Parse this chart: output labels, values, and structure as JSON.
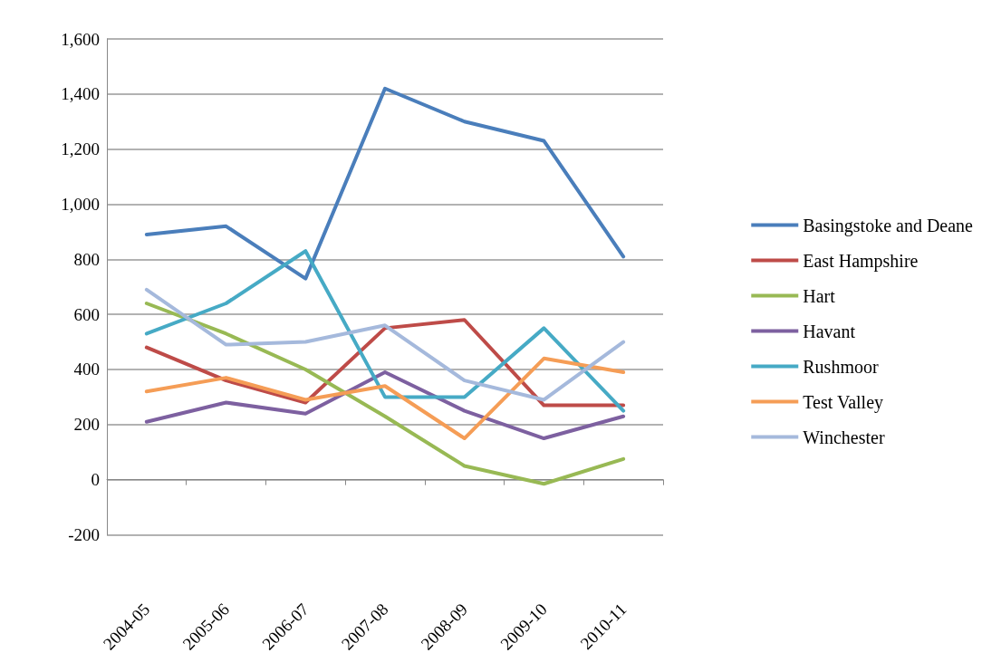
{
  "chart_data": {
    "type": "line",
    "categories": [
      "2004-05",
      "2005-06",
      "2006-07",
      "2007-08",
      "2008-09",
      "2009-10",
      "2010-11"
    ],
    "series": [
      {
        "name": "Basingstoke and Deane",
        "color": "#4a7ebb",
        "values": [
          890,
          920,
          730,
          1420,
          1300,
          1230,
          810
        ]
      },
      {
        "name": "East Hampshire",
        "color": "#be4b48",
        "values": [
          480,
          360,
          280,
          550,
          580,
          270,
          270
        ]
      },
      {
        "name": "Hart",
        "color": "#98b954",
        "values": [
          640,
          530,
          400,
          230,
          50,
          -15,
          75
        ]
      },
      {
        "name": "Havant",
        "color": "#7d60a0",
        "values": [
          210,
          280,
          240,
          390,
          250,
          150,
          230
        ]
      },
      {
        "name": "Rushmoor",
        "color": "#46aac5",
        "values": [
          530,
          640,
          830,
          300,
          300,
          550,
          250
        ]
      },
      {
        "name": "Test Valley",
        "color": "#f59d56",
        "values": [
          320,
          370,
          290,
          340,
          150,
          440,
          390
        ]
      },
      {
        "name": "Winchester",
        "color": "#a5b9dc",
        "values": [
          690,
          490,
          500,
          560,
          360,
          290,
          500
        ]
      }
    ],
    "ylim": [
      -200,
      1600
    ],
    "yticks": [
      -200,
      0,
      200,
      400,
      600,
      800,
      {
        "value": 1000,
        "label": "1,000"
      },
      {
        "value": 1200,
        "label": "1,200"
      },
      {
        "value": 1400,
        "label": "1,400"
      },
      {
        "value": 1600,
        "label": "1,600"
      }
    ],
    "grid": "y",
    "legend": "right",
    "marker": "none",
    "line_style": "solid"
  }
}
